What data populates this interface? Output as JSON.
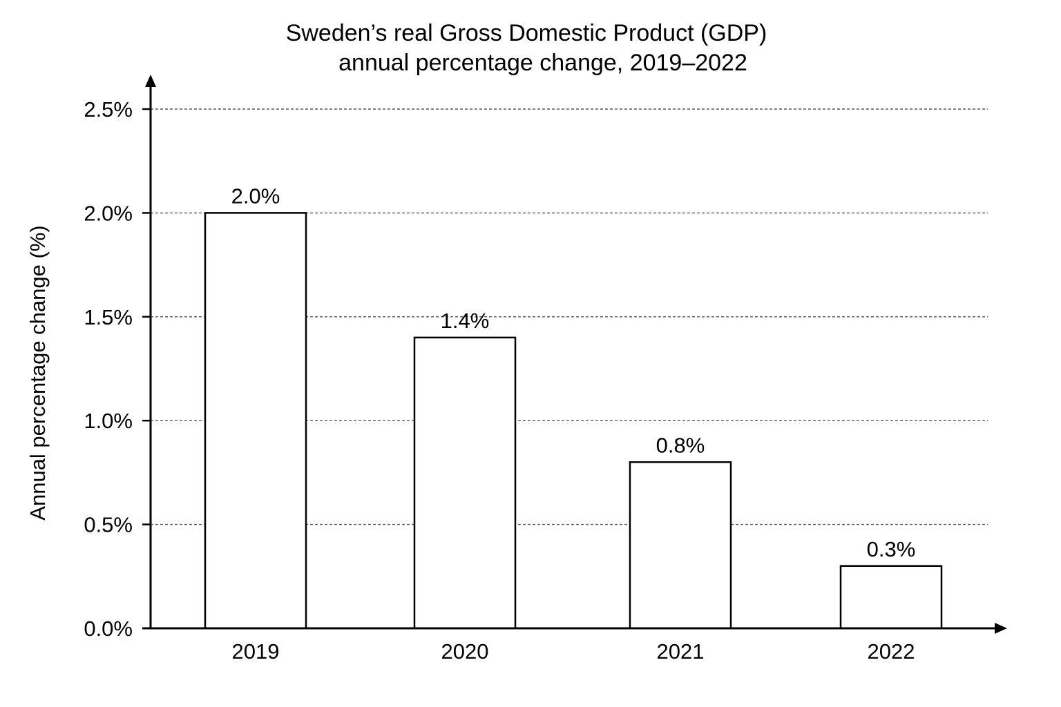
{
  "chart_data": {
    "type": "bar",
    "title_lines": [
      "Sweden’s real Gross Domestic Product (GDP)",
      "annual percentage change, 2019–2022"
    ],
    "xlabel": "",
    "ylabel": "Annual percentage change (%)",
    "categories": [
      "2019",
      "2020",
      "2021",
      "2022"
    ],
    "values": [
      2.0,
      1.4,
      0.8,
      0.3
    ],
    "data_labels": [
      "2.0%",
      "1.4%",
      "0.8%",
      "0.3%"
    ],
    "ylim": [
      0,
      2.5
    ],
    "yticks": [
      0,
      0.5,
      1.0,
      1.5,
      2.0,
      2.5
    ],
    "ytick_labels": [
      "0.0%",
      "0.5%",
      "1.0%",
      "1.5%",
      "2.0%",
      "2.5%"
    ],
    "grid": "horizontal dashed",
    "legend": "none",
    "colors": {
      "bar_fill": "#ffffff",
      "bar_stroke": "#000000",
      "grid": "#555555",
      "axis": "#000000"
    }
  }
}
